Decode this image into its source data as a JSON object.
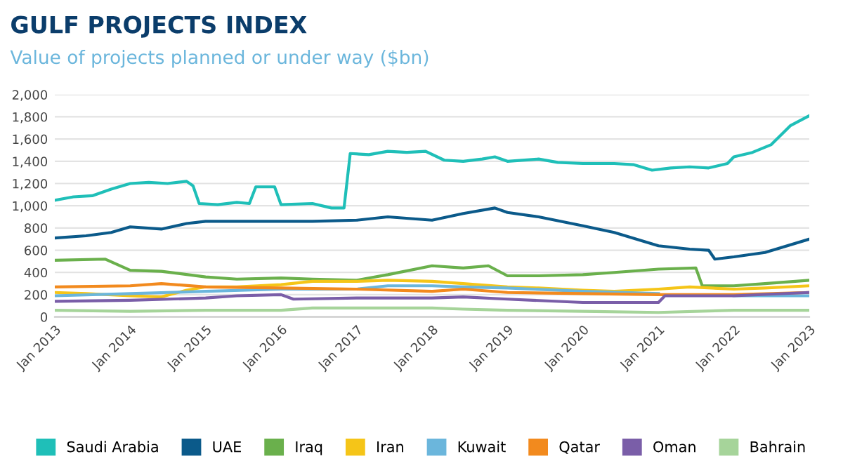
{
  "chart_data": {
    "type": "line",
    "title": "GULF PROJECTS INDEX",
    "subtitle": "Value of projects planned or under way ($bn)",
    "ylim": [
      0,
      2000
    ],
    "yticks": [
      {
        "value": 0,
        "label": "0"
      },
      {
        "value": 200,
        "label": "200"
      },
      {
        "value": 400,
        "label": "400"
      },
      {
        "value": 600,
        "label": "600"
      },
      {
        "value": 800,
        "label": "800"
      },
      {
        "value": 1000,
        "label": "1,000"
      },
      {
        "value": 1200,
        "label": "1,200"
      },
      {
        "value": 1400,
        "label": "1,400"
      },
      {
        "value": 1600,
        "label": "1,600"
      },
      {
        "value": 1800,
        "label": "1,800"
      },
      {
        "value": 2000,
        "label": "2,000"
      }
    ],
    "xlim": [
      "2013-01",
      "2023-01"
    ],
    "xticks": [
      {
        "value": "2013-01",
        "label": "Jan 2013"
      },
      {
        "value": "2014-01",
        "label": "Jan 2014"
      },
      {
        "value": "2015-01",
        "label": "Jan 2015"
      },
      {
        "value": "2016-01",
        "label": "Jan 2016"
      },
      {
        "value": "2017-01",
        "label": "Jan 2017"
      },
      {
        "value": "2018-01",
        "label": "Jan 2018"
      },
      {
        "value": "2019-01",
        "label": "Jan 2019"
      },
      {
        "value": "2020-01",
        "label": "Jan 2020"
      },
      {
        "value": "2021-01",
        "label": "Jan 2021"
      },
      {
        "value": "2022-01",
        "label": "Jan 2022"
      },
      {
        "value": "2023-01",
        "label": "Jan 2023"
      }
    ],
    "grid": "y",
    "legend": "bottom",
    "marker": "none",
    "line_style": "solid",
    "series": [
      {
        "name": "Saudi Arabia",
        "color": "#1fbfb8",
        "x": [
          "2013-01",
          "2013-04",
          "2013-07",
          "2013-10",
          "2014-01",
          "2014-04",
          "2014-07",
          "2014-10",
          "2014-11",
          "2014-12",
          "2015-03",
          "2015-06",
          "2015-08",
          "2015-09",
          "2015-12",
          "2016-01",
          "2016-06",
          "2016-09",
          "2016-11",
          "2016-12",
          "2017-03",
          "2017-06",
          "2017-09",
          "2017-12",
          "2018-03",
          "2018-06",
          "2018-09",
          "2018-11",
          "2019-01",
          "2019-06",
          "2019-09",
          "2020-01",
          "2020-06",
          "2020-09",
          "2020-12",
          "2021-03",
          "2021-06",
          "2021-09",
          "2021-12",
          "2022-01",
          "2022-04",
          "2022-07",
          "2022-10",
          "2023-01"
        ],
        "values": [
          1050,
          1080,
          1090,
          1150,
          1200,
          1210,
          1200,
          1220,
          1180,
          1020,
          1010,
          1030,
          1020,
          1170,
          1170,
          1010,
          1020,
          980,
          980,
          1470,
          1460,
          1490,
          1480,
          1490,
          1410,
          1400,
          1420,
          1440,
          1400,
          1420,
          1390,
          1380,
          1380,
          1370,
          1320,
          1340,
          1350,
          1340,
          1380,
          1440,
          1480,
          1550,
          1720,
          1810
        ]
      },
      {
        "name": "UAE",
        "color": "#0b5a8a",
        "x": [
          "2013-01",
          "2013-06",
          "2013-10",
          "2014-01",
          "2014-06",
          "2014-10",
          "2015-01",
          "2015-06",
          "2016-01",
          "2016-06",
          "2017-01",
          "2017-06",
          "2018-01",
          "2018-06",
          "2018-11",
          "2019-01",
          "2019-06",
          "2020-01",
          "2020-06",
          "2021-01",
          "2021-06",
          "2021-09",
          "2021-10",
          "2022-01",
          "2022-06",
          "2023-01"
        ],
        "values": [
          710,
          730,
          760,
          810,
          790,
          840,
          860,
          860,
          860,
          860,
          870,
          900,
          870,
          930,
          980,
          940,
          900,
          820,
          760,
          640,
          610,
          600,
          520,
          540,
          580,
          700
        ]
      },
      {
        "name": "Iraq",
        "color": "#6ab04c",
        "x": [
          "2013-01",
          "2013-09",
          "2014-01",
          "2014-06",
          "2015-01",
          "2015-06",
          "2016-01",
          "2016-06",
          "2017-01",
          "2017-06",
          "2018-01",
          "2018-06",
          "2018-10",
          "2019-01",
          "2019-06",
          "2020-01",
          "2020-06",
          "2021-01",
          "2021-07",
          "2021-08",
          "2022-01",
          "2022-06",
          "2023-01"
        ],
        "values": [
          510,
          520,
          420,
          410,
          360,
          340,
          350,
          340,
          330,
          380,
          460,
          440,
          460,
          370,
          370,
          380,
          400,
          430,
          440,
          280,
          280,
          300,
          330
        ]
      },
      {
        "name": "Iran",
        "color": "#f5c518",
        "x": [
          "2013-01",
          "2013-06",
          "2014-01",
          "2014-06",
          "2014-10",
          "2015-01",
          "2015-06",
          "2016-01",
          "2016-06",
          "2017-01",
          "2017-06",
          "2018-01",
          "2018-06",
          "2019-01",
          "2019-06",
          "2020-01",
          "2020-06",
          "2021-01",
          "2021-06",
          "2022-01",
          "2022-06",
          "2023-01"
        ],
        "values": [
          220,
          210,
          190,
          180,
          240,
          270,
          270,
          290,
          320,
          320,
          330,
          320,
          300,
          270,
          260,
          240,
          230,
          250,
          270,
          250,
          260,
          280
        ]
      },
      {
        "name": "Kuwait",
        "color": "#6bb6dc",
        "x": [
          "2013-01",
          "2014-01",
          "2015-01",
          "2016-01",
          "2017-01",
          "2017-06",
          "2018-01",
          "2018-06",
          "2019-01",
          "2020-01",
          "2021-01",
          "2021-06",
          "2022-01",
          "2023-01"
        ],
        "values": [
          190,
          210,
          230,
          250,
          250,
          280,
          280,
          270,
          260,
          230,
          210,
          null,
          190,
          190
        ]
      },
      {
        "name": "Qatar",
        "color": "#f28a1e",
        "x": [
          "2013-01",
          "2014-01",
          "2014-06",
          "2015-01",
          "2016-01",
          "2017-01",
          "2018-01",
          "2018-06",
          "2019-01",
          "2020-01",
          "2021-01",
          "2022-01",
          "2023-01"
        ],
        "values": [
          270,
          280,
          300,
          270,
          260,
          250,
          230,
          250,
          220,
          210,
          200,
          200,
          220
        ]
      },
      {
        "name": "Oman",
        "color": "#7a5ea8",
        "x": [
          "2013-01",
          "2014-01",
          "2015-01",
          "2015-06",
          "2016-01",
          "2016-03",
          "2017-01",
          "2018-01",
          "2018-06",
          "2019-01",
          "2020-01",
          "2021-01",
          "2021-02",
          "2022-01",
          "2023-01"
        ],
        "values": [
          140,
          150,
          170,
          190,
          200,
          160,
          170,
          170,
          180,
          160,
          130,
          130,
          190,
          190,
          220
        ]
      },
      {
        "name": "Bahrain",
        "color": "#a6d49a",
        "x": [
          "2013-01",
          "2014-01",
          "2015-01",
          "2016-01",
          "2016-06",
          "2018-01",
          "2018-06",
          "2019-01",
          "2020-01",
          "2021-01",
          "2022-01",
          "2023-01"
        ],
        "values": [
          60,
          50,
          60,
          60,
          80,
          80,
          70,
          60,
          50,
          40,
          60,
          60
        ]
      }
    ]
  }
}
